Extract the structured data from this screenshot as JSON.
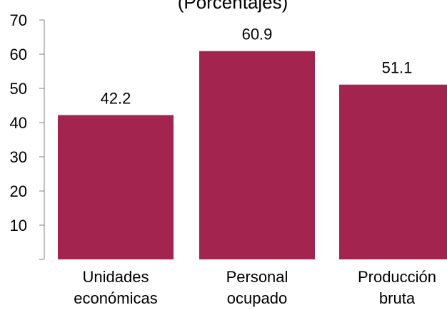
{
  "chart_data": {
    "type": "bar",
    "title": "(Porcentajes)",
    "categories": [
      [
        "Unidades",
        "económicas"
      ],
      [
        "Personal",
        "ocupado"
      ],
      [
        "Producción",
        "bruta"
      ]
    ],
    "values": [
      42.2,
      60.9,
      51.1
    ],
    "data_labels": [
      "42.2",
      "60.9",
      "51.1"
    ],
    "yticks": [
      10,
      20,
      30,
      40,
      50,
      60,
      70
    ],
    "ylim": [
      0,
      70
    ],
    "bar_color": "#a3254f",
    "grid": false,
    "legend": "none"
  }
}
